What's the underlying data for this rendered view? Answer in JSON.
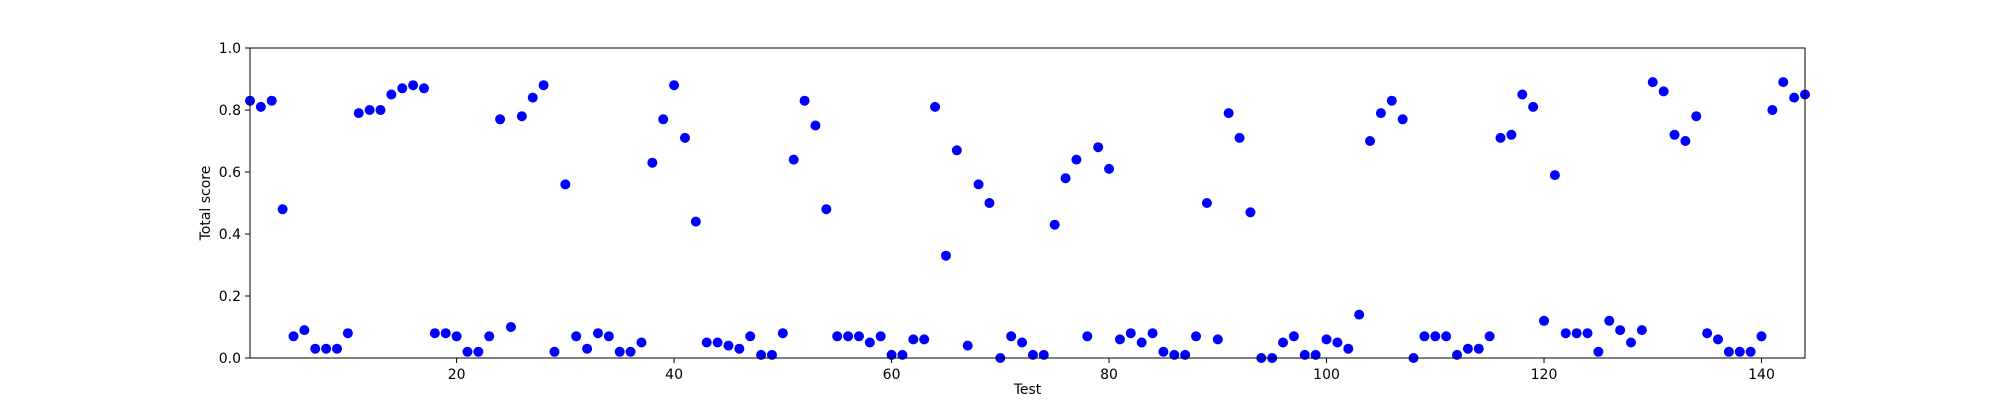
{
  "chart_data": {
    "type": "scatter",
    "xlabel": "Test",
    "ylabel": "Total score",
    "xlim": [
      1,
      144
    ],
    "ylim": [
      0,
      1.0
    ],
    "x_ticks": [
      20,
      40,
      60,
      80,
      100,
      120,
      140
    ],
    "x_tick_labels": [
      "20",
      "40",
      "60",
      "80",
      "100",
      "120",
      "140"
    ],
    "y_ticks": [
      0.0,
      0.2,
      0.4,
      0.6,
      0.8,
      1.0
    ],
    "y_tick_labels": [
      "0.0",
      "0.2",
      "0.4",
      "0.6",
      "0.8",
      "1.0"
    ],
    "grid": false,
    "marker_color": "#0000ff",
    "points": [
      [
        1,
        0.83
      ],
      [
        2,
        0.81
      ],
      [
        3,
        0.83
      ],
      [
        4,
        0.48
      ],
      [
        5,
        0.07
      ],
      [
        6,
        0.09
      ],
      [
        7,
        0.03
      ],
      [
        8,
        0.03
      ],
      [
        9,
        0.03
      ],
      [
        10,
        0.08
      ],
      [
        11,
        0.79
      ],
      [
        12,
        0.8
      ],
      [
        13,
        0.8
      ],
      [
        14,
        0.85
      ],
      [
        15,
        0.87
      ],
      [
        16,
        0.88
      ],
      [
        17,
        0.87
      ],
      [
        18,
        0.08
      ],
      [
        19,
        0.08
      ],
      [
        20,
        0.07
      ],
      [
        21,
        0.02
      ],
      [
        22,
        0.02
      ],
      [
        23,
        0.07
      ],
      [
        24,
        0.77
      ],
      [
        25,
        0.1
      ],
      [
        26,
        0.78
      ],
      [
        27,
        0.84
      ],
      [
        28,
        0.88
      ],
      [
        29,
        0.02
      ],
      [
        30,
        0.56
      ],
      [
        31,
        0.07
      ],
      [
        32,
        0.03
      ],
      [
        33,
        0.08
      ],
      [
        34,
        0.07
      ],
      [
        35,
        0.02
      ],
      [
        36,
        0.02
      ],
      [
        37,
        0.05
      ],
      [
        38,
        0.63
      ],
      [
        39,
        0.77
      ],
      [
        40,
        0.88
      ],
      [
        41,
        0.71
      ],
      [
        42,
        0.44
      ],
      [
        43,
        0.05
      ],
      [
        44,
        0.05
      ],
      [
        45,
        0.04
      ],
      [
        46,
        0.03
      ],
      [
        47,
        0.07
      ],
      [
        48,
        0.01
      ],
      [
        49,
        0.01
      ],
      [
        50,
        0.08
      ],
      [
        51,
        0.64
      ],
      [
        52,
        0.83
      ],
      [
        53,
        0.75
      ],
      [
        54,
        0.48
      ],
      [
        55,
        0.07
      ],
      [
        56,
        0.07
      ],
      [
        57,
        0.07
      ],
      [
        58,
        0.05
      ],
      [
        59,
        0.07
      ],
      [
        60,
        0.01
      ],
      [
        61,
        0.01
      ],
      [
        62,
        0.06
      ],
      [
        63,
        0.06
      ],
      [
        64,
        0.81
      ],
      [
        65,
        0.33
      ],
      [
        66,
        0.67
      ],
      [
        67,
        0.04
      ],
      [
        68,
        0.56
      ],
      [
        69,
        0.5
      ],
      [
        70,
        0.0
      ],
      [
        71,
        0.07
      ],
      [
        72,
        0.05
      ],
      [
        73,
        0.01
      ],
      [
        74,
        0.01
      ],
      [
        75,
        0.43
      ],
      [
        76,
        0.58
      ],
      [
        77,
        0.64
      ],
      [
        78,
        0.07
      ],
      [
        79,
        0.68
      ],
      [
        80,
        0.61
      ],
      [
        81,
        0.06
      ],
      [
        82,
        0.08
      ],
      [
        83,
        0.05
      ],
      [
        84,
        0.08
      ],
      [
        85,
        0.02
      ],
      [
        86,
        0.01
      ],
      [
        87,
        0.01
      ],
      [
        88,
        0.07
      ],
      [
        89,
        0.5
      ],
      [
        90,
        0.06
      ],
      [
        91,
        0.79
      ],
      [
        92,
        0.71
      ],
      [
        93,
        0.47
      ],
      [
        94,
        0.0
      ],
      [
        95,
        0.0
      ],
      [
        96,
        0.05
      ],
      [
        97,
        0.07
      ],
      [
        98,
        0.01
      ],
      [
        99,
        0.01
      ],
      [
        100,
        0.06
      ],
      [
        101,
        0.05
      ],
      [
        102,
        0.03
      ],
      [
        103,
        0.14
      ],
      [
        104,
        0.7
      ],
      [
        105,
        0.79
      ],
      [
        106,
        0.83
      ],
      [
        107,
        0.77
      ],
      [
        108,
        0.0
      ],
      [
        109,
        0.07
      ],
      [
        110,
        0.07
      ],
      [
        111,
        0.07
      ],
      [
        112,
        0.01
      ],
      [
        113,
        0.03
      ],
      [
        114,
        0.03
      ],
      [
        115,
        0.07
      ],
      [
        116,
        0.71
      ],
      [
        117,
        0.72
      ],
      [
        118,
        0.85
      ],
      [
        119,
        0.81
      ],
      [
        120,
        0.12
      ],
      [
        121,
        0.59
      ],
      [
        122,
        0.08
      ],
      [
        123,
        0.08
      ],
      [
        124,
        0.08
      ],
      [
        125,
        0.02
      ],
      [
        126,
        0.12
      ],
      [
        127,
        0.09
      ],
      [
        128,
        0.05
      ],
      [
        129,
        0.09
      ],
      [
        130,
        0.89
      ],
      [
        131,
        0.86
      ],
      [
        132,
        0.72
      ],
      [
        133,
        0.7
      ],
      [
        134,
        0.78
      ],
      [
        135,
        0.08
      ],
      [
        136,
        0.06
      ],
      [
        137,
        0.02
      ],
      [
        138,
        0.02
      ],
      [
        139,
        0.02
      ],
      [
        140,
        0.07
      ],
      [
        141,
        0.8
      ],
      [
        142,
        0.89
      ],
      [
        143,
        0.84
      ],
      [
        144,
        0.85
      ]
    ]
  }
}
